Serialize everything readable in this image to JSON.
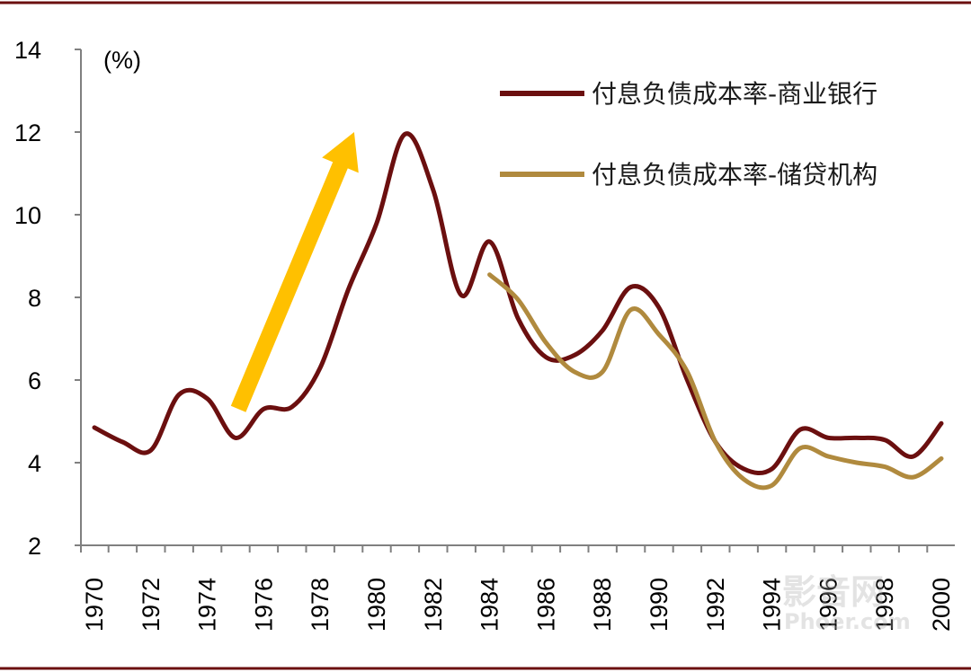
{
  "chart_data": {
    "type": "line",
    "title": "",
    "xlabel": "",
    "ylabel": "(%)",
    "xlim": [
      1970,
      2000
    ],
    "ylim": [
      2,
      14
    ],
    "x_ticks": [
      "1970",
      "1972",
      "1974",
      "1976",
      "1978",
      "1980",
      "1982",
      "1984",
      "1986",
      "1988",
      "1990",
      "1992",
      "1994",
      "1996",
      "1998",
      "2000"
    ],
    "y_ticks": [
      "2",
      "4",
      "6",
      "8",
      "10",
      "12",
      "14"
    ],
    "grid": false,
    "legend_position": "top-right",
    "series": [
      {
        "name": "付息负债成本率-商业银行",
        "color": "#6B0F0F",
        "x": [
          1970,
          1971,
          1972,
          1973,
          1974,
          1975,
          1976,
          1977,
          1978,
          1979,
          1980,
          1981,
          1982,
          1983,
          1984,
          1985,
          1986,
          1987,
          1988,
          1989,
          1990,
          1991,
          1992,
          1993,
          1994,
          1995,
          1996,
          1997,
          1998,
          1999,
          2000
        ],
        "values": [
          4.85,
          4.5,
          4.3,
          5.65,
          5.55,
          4.6,
          5.3,
          5.35,
          6.3,
          8.2,
          9.8,
          11.95,
          10.6,
          8.05,
          9.35,
          7.5,
          6.55,
          6.6,
          7.2,
          8.25,
          7.75,
          6.0,
          4.5,
          3.85,
          3.85,
          4.8,
          4.6,
          4.6,
          4.55,
          4.15,
          4.95
        ]
      },
      {
        "name": "付息负债成本率-储贷机构",
        "color": "#B08A3E",
        "x": [
          1984,
          1985,
          1986,
          1987,
          1988,
          1989,
          1990,
          1991,
          1992,
          1993,
          1994,
          1995,
          1996,
          1997,
          1998,
          1999,
          2000
        ],
        "values": [
          8.55,
          7.95,
          6.9,
          6.2,
          6.2,
          7.7,
          7.1,
          6.2,
          4.5,
          3.6,
          3.45,
          4.35,
          4.15,
          4.0,
          3.9,
          3.65,
          4.1
        ]
      }
    ],
    "annotations": [
      {
        "type": "arrow",
        "color": "#FFC000",
        "from": [
          1975.1,
          5.3
        ],
        "to": [
          1979.2,
          12.0
        ]
      }
    ]
  },
  "watermark": {
    "line1": "影音网",
    "line2": "Phoer.com"
  }
}
